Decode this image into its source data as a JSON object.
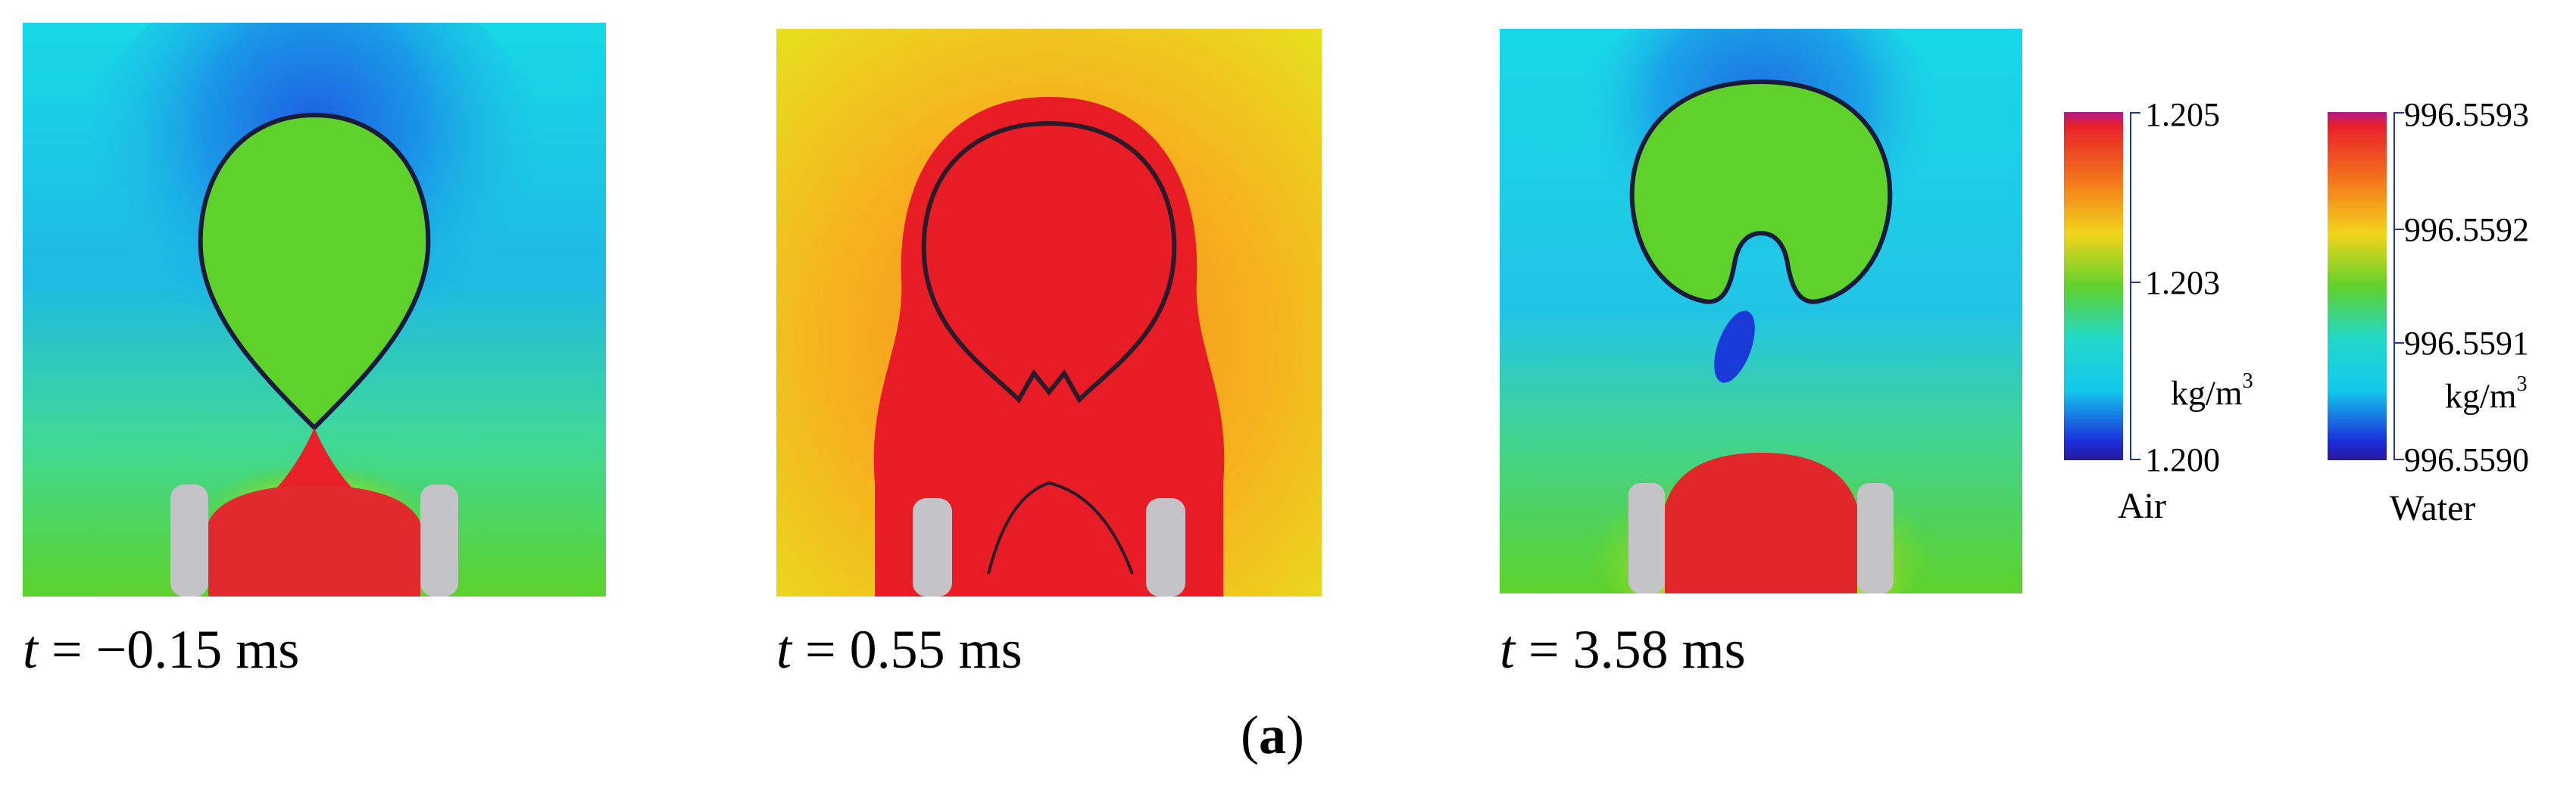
{
  "figure": {
    "caption_letter": "a",
    "panels": [
      {
        "time_var": "t",
        "time_rest": " = −0.15 ms"
      },
      {
        "time_var": "t",
        "time_rest": " = 0.55 ms"
      },
      {
        "time_var": "t",
        "time_rest": " = 3.58 ms"
      }
    ],
    "colorbars": [
      {
        "name": "Air",
        "unit": "kg/m",
        "unit_sup": "3",
        "ticks": [
          "1.205",
          "1.203",
          "1.200"
        ]
      },
      {
        "name": "Water",
        "unit": "kg/m",
        "unit_sup": "3",
        "ticks": [
          "996.5593",
          "996.5592",
          "996.5591",
          "996.5590"
        ]
      }
    ],
    "colors": {
      "jet_top": "#e8202a",
      "jet_mid": "#5fd12b",
      "jet_low": "#14d2e0",
      "jet_bottom": "#1a1ad8",
      "wall_gray": "#c4c4c8"
    }
  }
}
